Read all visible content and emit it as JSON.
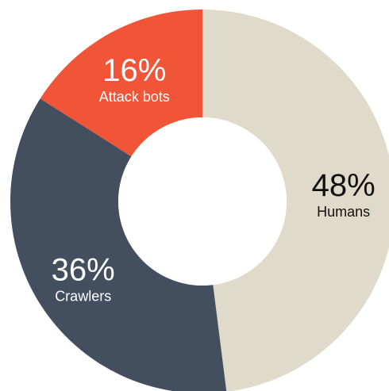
{
  "chart_data": {
    "type": "pie",
    "style": "donut",
    "start_angle_deg": 0,
    "direction": "clockwise",
    "slices": [
      {
        "label": "Humans",
        "value": 48,
        "value_label": "48%",
        "color": "#dfdaca",
        "text_color": "#111111"
      },
      {
        "label": "Crawlers",
        "value": 36,
        "value_label": "36%",
        "color": "#434f5e",
        "text_color": "#ffffff"
      },
      {
        "label": "Attack bots",
        "value": 16,
        "value_label": "16%",
        "color": "#f05537",
        "text_color": "#ffffff"
      }
    ],
    "legend": "none"
  }
}
